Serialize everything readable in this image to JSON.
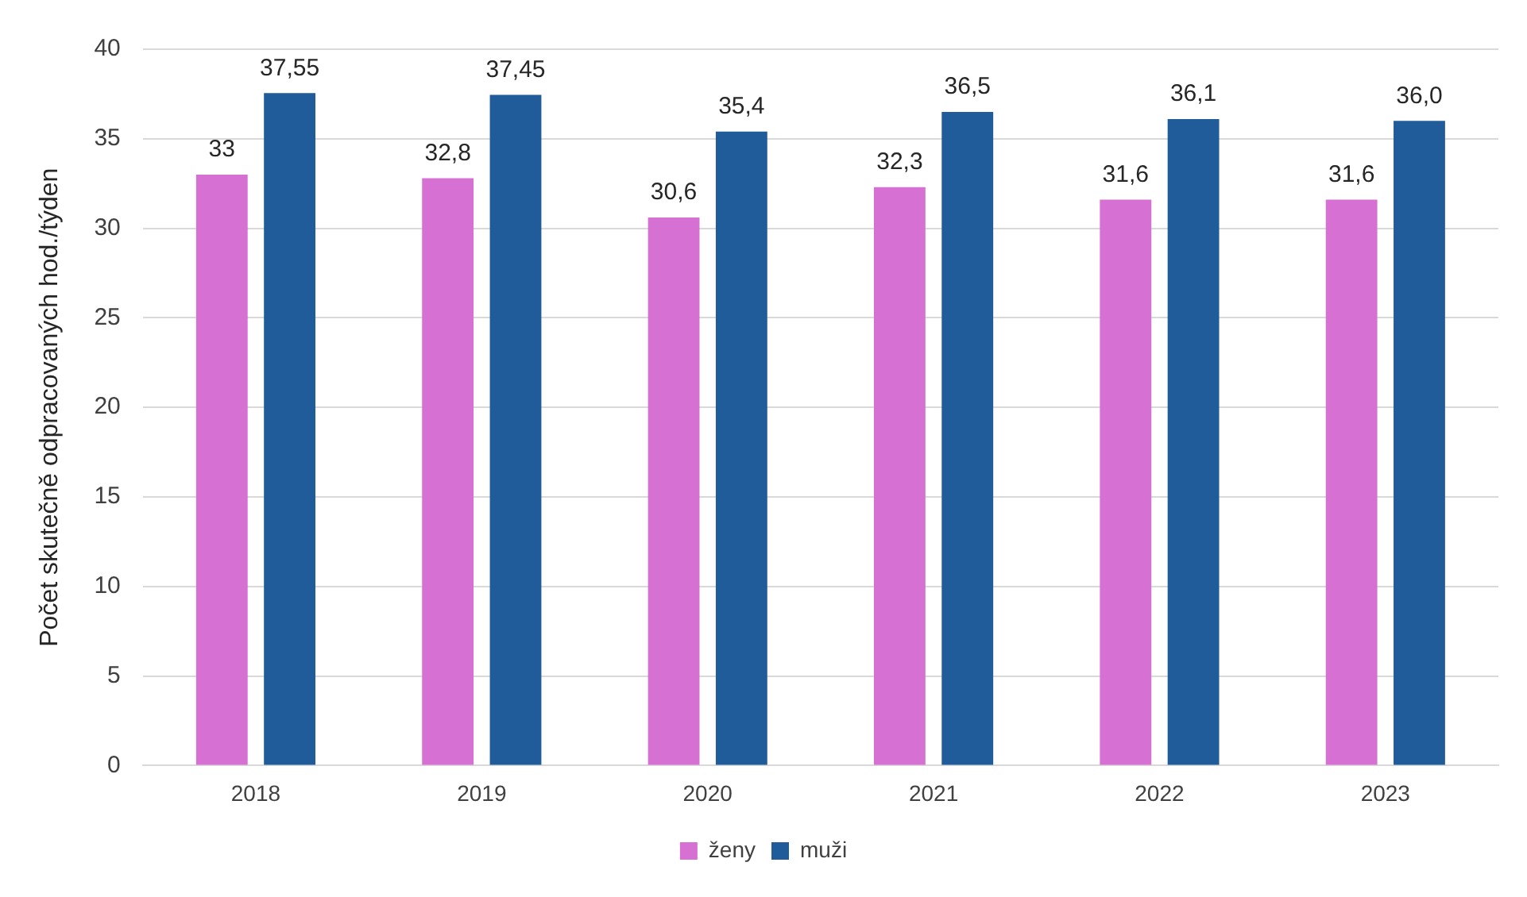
{
  "chart_data": {
    "type": "bar",
    "ylabel": "Počet skutečně odpracovaných hod./týden",
    "categories": [
      "2018",
      "2019",
      "2020",
      "2021",
      "2022",
      "2023"
    ],
    "series": [
      {
        "name": "ženy",
        "color": "#d670d2",
        "values": [
          33,
          32.8,
          30.6,
          32.3,
          31.6,
          31.6
        ],
        "value_labels": [
          "33",
          "32,8",
          "30,6",
          "32,3",
          "31,6",
          "31,6"
        ]
      },
      {
        "name": "muži",
        "color": "#1f5c99",
        "values": [
          37.55,
          37.45,
          35.4,
          36.5,
          36.1,
          36.0
        ],
        "value_labels": [
          "37,55",
          "37,45",
          "35,4",
          "36,5",
          "36,1",
          "36,0"
        ]
      }
    ],
    "ylim": [
      0,
      40
    ],
    "yticks": [
      0,
      5,
      10,
      15,
      20,
      25,
      30,
      35,
      40
    ],
    "grid": "y",
    "legend": "bottom"
  }
}
